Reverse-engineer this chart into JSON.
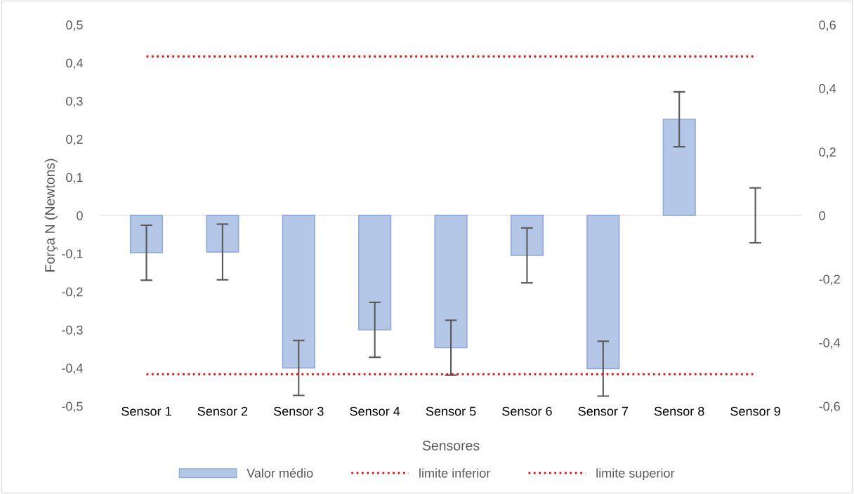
{
  "chart_data": {
    "type": "bar",
    "xlabel": "Sensores",
    "ylabel": "Força N (Newtons)",
    "categories": [
      "Sensor 1",
      "Sensor 2",
      "Sensor 3",
      "Sensor 4",
      "Sensor 5",
      "Sensor 6",
      "Sensor 7",
      "Sensor 8",
      "Sensor 9"
    ],
    "series": [
      {
        "name": "Valor médio",
        "color": "#b4c7e7",
        "values": [
          -0.098,
          -0.096,
          -0.4,
          -0.3,
          -0.347,
          -0.105,
          -0.402,
          0.252,
          0
        ],
        "errors": [
          0.072,
          0.073,
          0.072,
          0.072,
          0.072,
          0.072,
          0.072,
          0.072,
          0.072
        ]
      },
      {
        "name": "limite inferior",
        "type": "line",
        "axis": "y2",
        "color": "#ff0000",
        "line_style": "dotted",
        "values": [
          -0.5,
          -0.5,
          -0.5,
          -0.5,
          -0.5,
          -0.5,
          -0.5,
          -0.5,
          -0.5
        ]
      },
      {
        "name": "limite superior",
        "type": "line",
        "axis": "y2",
        "color": "#ff0000",
        "line_style": "dotted",
        "values": [
          0.5,
          0.5,
          0.5,
          0.5,
          0.5,
          0.5,
          0.5,
          0.5,
          0.5
        ]
      }
    ],
    "ylim": [
      -0.5,
      0.5
    ],
    "yticks": [
      {
        "value": -0.5,
        "label": "-0,5"
      },
      {
        "value": -0.4,
        "label": "-0,4"
      },
      {
        "value": -0.3,
        "label": "-0,3"
      },
      {
        "value": -0.2,
        "label": "-0,2"
      },
      {
        "value": -0.1,
        "label": "-0,1"
      },
      0,
      {
        "value": 0.1,
        "label": "0,1"
      },
      {
        "value": 0.2,
        "label": "0,2"
      },
      {
        "value": 0.3,
        "label": "0,3"
      },
      {
        "value": 0.4,
        "label": "0,4"
      },
      {
        "value": 0.5,
        "label": "0,5"
      }
    ],
    "y2lim": [
      -0.6,
      0.6
    ],
    "y2ticks": [
      {
        "value": -0.6,
        "label": "-0,6"
      },
      {
        "value": -0.4,
        "label": "-0,4"
      },
      {
        "value": -0.2,
        "label": "-0,2"
      },
      0,
      {
        "value": 0.2,
        "label": "0,2"
      },
      {
        "value": 0.4,
        "label": "0,4"
      },
      {
        "value": 0.6,
        "label": "0,6"
      }
    ],
    "legend": "bottom"
  }
}
